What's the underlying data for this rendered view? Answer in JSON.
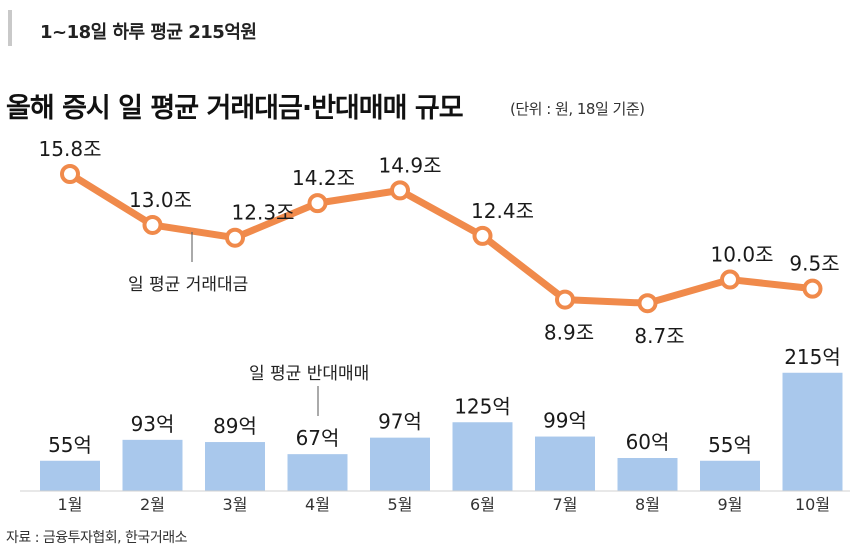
{
  "subhead": "1~18일 하루 평균 215억원",
  "title": "올해 증시 일 평균 거래대금·반대매매 규모",
  "unit_note": "(단위 : 원, 18일 기준)",
  "source": "자료 : 금융투자협회, 한국거래소",
  "colors": {
    "line": "#f08a4b",
    "bar": "#a9c8ec",
    "text": "#1a1a1a"
  },
  "chart_data": [
    {
      "type": "line",
      "name": "일 평균 거래대금",
      "categories": [
        "1월",
        "2월",
        "3월",
        "4월",
        "5월",
        "6월",
        "7월",
        "8월",
        "9월",
        "10월"
      ],
      "values": [
        15.8,
        13.0,
        12.3,
        14.2,
        14.9,
        12.4,
        8.9,
        8.7,
        10.0,
        9.5
      ],
      "value_labels": [
        "15.8조",
        "13.0조",
        "12.3조",
        "14.2조",
        "14.9조",
        "12.4조",
        "8.9조",
        "8.7조",
        "10.0조",
        "9.5조"
      ],
      "unit": "조"
    },
    {
      "type": "bar",
      "name": "일 평균 반대매매",
      "categories": [
        "1월",
        "2월",
        "3월",
        "4월",
        "5월",
        "6월",
        "7월",
        "8월",
        "9월",
        "10월"
      ],
      "values": [
        55,
        93,
        89,
        67,
        97,
        125,
        99,
        60,
        55,
        215
      ],
      "value_labels": [
        "55억",
        "93억",
        "89억",
        "67억",
        "97억",
        "125억",
        "99억",
        "60억",
        "55억",
        "215억"
      ],
      "unit": "억"
    }
  ]
}
